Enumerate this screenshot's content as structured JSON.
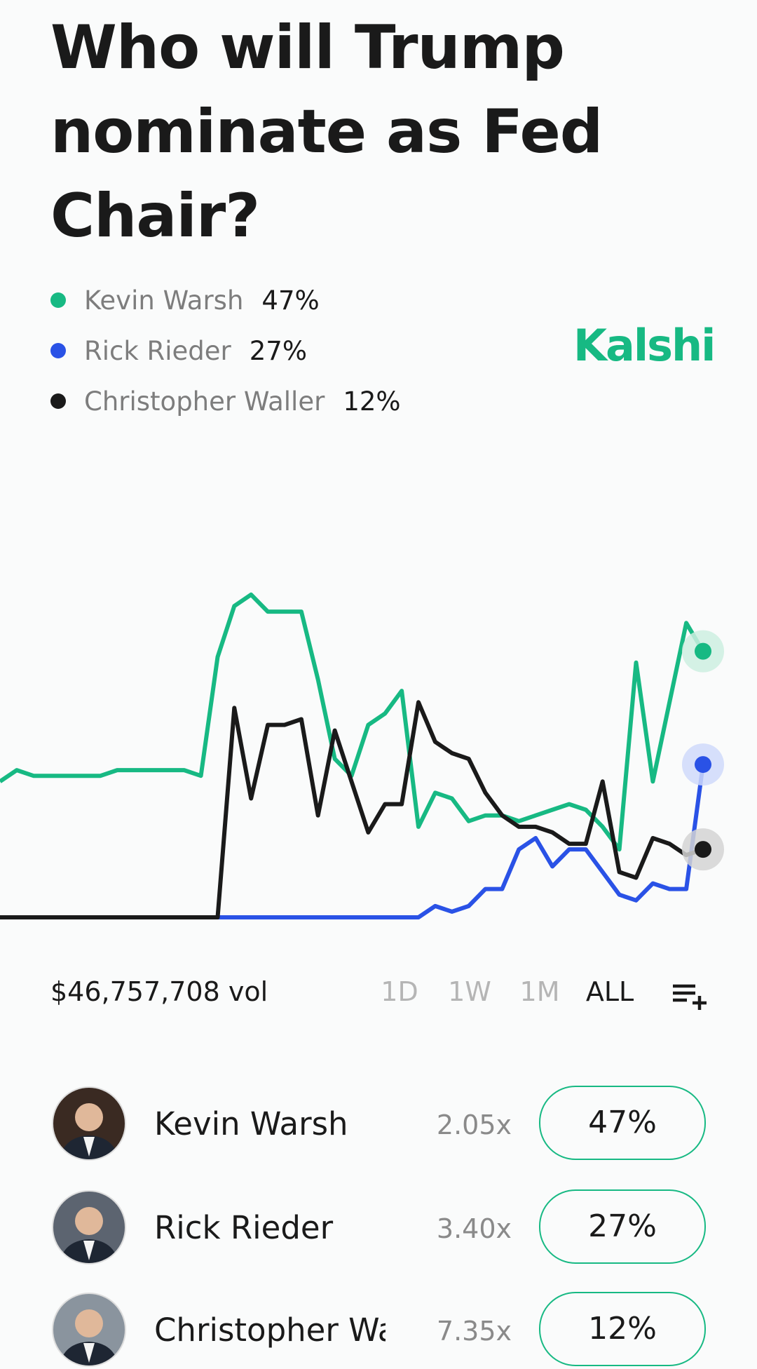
{
  "title": "Who will Trump nominate as Fed Chair?",
  "brand": "Kalshi",
  "chart_data": {
    "type": "line",
    "ylim": [
      0,
      70
    ],
    "series": [
      {
        "name": "Kevin Warsh",
        "last_label": "47%",
        "color": "#17b983",
        "halo": "#cdeee0",
        "values": [
          24,
          26,
          25,
          25,
          25,
          25,
          25,
          26,
          26,
          26,
          26,
          26,
          25,
          46,
          55,
          57,
          54,
          54,
          54,
          42,
          28,
          25,
          34,
          36,
          40,
          16,
          22,
          21,
          17,
          18,
          18,
          17,
          18,
          19,
          20,
          19,
          16,
          12,
          45,
          24,
          38,
          52,
          47
        ]
      },
      {
        "name": "Rick Rieder",
        "last_label": "27%",
        "color": "#2a52e6",
        "halo": "#cfd9fa",
        "values": [
          0,
          0,
          0,
          0,
          0,
          0,
          0,
          0,
          0,
          0,
          0,
          0,
          0,
          0,
          0,
          0,
          0,
          0,
          0,
          0,
          0,
          0,
          0,
          0,
          0,
          0,
          2,
          1,
          2,
          5,
          5,
          12,
          14,
          9,
          12,
          12,
          8,
          4,
          3,
          6,
          5,
          5,
          27
        ]
      },
      {
        "name": "Christopher Waller",
        "last_label": "12%",
        "color": "#1a1a1a",
        "halo": "#d4d4d4",
        "values": [
          0,
          0,
          0,
          0,
          0,
          0,
          0,
          0,
          0,
          0,
          0,
          0,
          0,
          0,
          37,
          21,
          34,
          34,
          35,
          18,
          33,
          24,
          15,
          20,
          20,
          38,
          31,
          29,
          28,
          22,
          18,
          16,
          16,
          15,
          13,
          13,
          24,
          8,
          7,
          14,
          13,
          11,
          12
        ]
      }
    ]
  },
  "volume": "$46,757,708 vol",
  "timeframes": [
    "1D",
    "1W",
    "1M",
    "ALL"
  ],
  "active_timeframe": "ALL",
  "outcomes": [
    {
      "name": "Kevin Warsh",
      "multiplier": "2.05x",
      "chance": "47%"
    },
    {
      "name": "Rick Rieder",
      "multiplier": "3.40x",
      "chance": "27%"
    },
    {
      "name": "Christopher Waller",
      "multiplier": "7.35x",
      "chance": "12%"
    }
  ]
}
